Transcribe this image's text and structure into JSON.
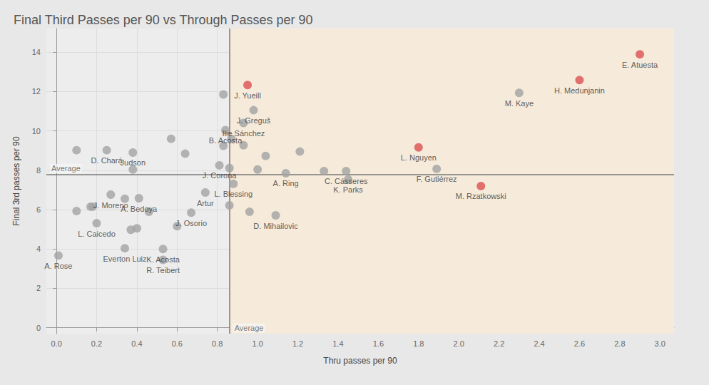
{
  "chart_data": {
    "type": "scatter",
    "title": "Final Third Passes per 90 vs Through Passes per 90",
    "x_label": "Thru passes per 90",
    "y_label": "Final 3rd passes per 90",
    "x": [
      0.01,
      0.1,
      0.17,
      0.18,
      0.2,
      0.1,
      0.25,
      0.38,
      0.38,
      0.27,
      0.34,
      0.34,
      0.41,
      0.37,
      0.4,
      0.46,
      0.53,
      0.53,
      0.57,
      0.6,
      0.67,
      0.64,
      0.81,
      0.74,
      0.83,
      0.84,
      0.83,
      0.87,
      0.86,
      0.86,
      0.88,
      0.95,
      0.98,
      0.93,
      0.93,
      0.96,
      1.09,
      1.0,
      1.04,
      1.14,
      1.21,
      1.33,
      1.44,
      1.45,
      1.8,
      1.89,
      2.11,
      2.3,
      2.6,
      2.9
    ],
    "values": [
      3.67,
      5.93,
      6.15,
      6.15,
      5.31,
      9.02,
      9.02,
      8.9,
      8.04,
      6.76,
      4.04,
      6.55,
      6.58,
      4.98,
      5.05,
      5.89,
      4.0,
      3.45,
      9.6,
      5.16,
      5.85,
      8.84,
      8.25,
      6.87,
      11.85,
      10.04,
      9.24,
      9.6,
      8.11,
      6.22,
      7.31,
      12.33,
      11.05,
      10.4,
      9.27,
      5.89,
      5.71,
      8.04,
      8.73,
      7.85,
      8.95,
      7.96,
      7.96,
      7.53,
      9.16,
      8.07,
      7.2,
      11.93,
      12.58,
      13.89
    ],
    "point_labels": [
      "A. Rose",
      null,
      null,
      null,
      "L. Caicedo",
      null,
      "D. Chará",
      "Judson",
      null,
      "J. Moreno",
      "Everton Luiz",
      null,
      "A. Bedoya",
      null,
      null,
      null,
      "K. Acosta",
      "R. Teibert",
      null,
      null,
      "J. Osorio",
      null,
      "J. Corona",
      "Artur",
      null,
      "B. Acosta",
      null,
      null,
      null,
      null,
      "L. Blessing",
      "J. Yueill",
      "J. Greguš",
      "Ilie Sánchez",
      null,
      null,
      "D. Mihailovic",
      null,
      null,
      "A. Ring",
      null,
      null,
      "C. Cásseres",
      "K. Parks",
      "L. Nguyen",
      "F. Gutiérrez",
      "M. Rzatkowski",
      "M. Kaye",
      "H. Medunjanin",
      "E. Atuesta"
    ],
    "colors": [
      "#a3a3a3",
      "#a3a3a3",
      "#a3a3a3",
      "#a3a3a3",
      "#a3a3a3",
      "#a3a3a3",
      "#a3a3a3",
      "#a3a3a3",
      "#a3a3a3",
      "#a3a3a3",
      "#a3a3a3",
      "#a3a3a3",
      "#a3a3a3",
      "#a3a3a3",
      "#a3a3a3",
      "#a3a3a3",
      "#a3a3a3",
      "#a3a3a3",
      "#a3a3a3",
      "#a3a3a3",
      "#a3a3a3",
      "#a3a3a3",
      "#a3a3a3",
      "#a3a3a3",
      "#a3a3a3",
      "#a3a3a3",
      "#a3a3a3",
      "#a3a3a3",
      "#a3a3a3",
      "#a3a3a3",
      "#a3a3a3",
      "#dc5050",
      "#a3a3a3",
      "#a3a3a3",
      "#a3a3a3",
      "#a3a3a3",
      "#a3a3a3",
      "#a3a3a3",
      "#a3a3a3",
      "#a3a3a3",
      "#a3a3a3",
      "#a3a3a3",
      "#a3a3a3",
      "#a3a3a3",
      "#dc5050",
      "#a3a3a3",
      "#dc5050",
      "#a3a3a3",
      "#dc5050",
      "#dc5050"
    ],
    "xlim": [
      -0.05,
      3.07
    ],
    "ylim": [
      -0.3,
      15.2
    ],
    "xticks": [
      {
        "value": 0,
        "label": "0.0"
      },
      {
        "value": 0.2,
        "label": "0.2"
      },
      {
        "value": 0.4,
        "label": "0.4"
      },
      {
        "value": 0.6,
        "label": "0.6"
      },
      {
        "value": 0.8,
        "label": "0.8"
      },
      {
        "value": 1.0,
        "label": "1.0"
      },
      {
        "value": 1.2,
        "label": "1.2"
      },
      {
        "value": 1.4,
        "label": "1.4"
      },
      {
        "value": 1.6,
        "label": "1.6"
      },
      {
        "value": 1.8,
        "label": "1.8"
      },
      {
        "value": 2.0,
        "label": "2.0"
      },
      {
        "value": 2.2,
        "label": "2.2"
      },
      {
        "value": 2.4,
        "label": "2.4"
      },
      {
        "value": 2.6,
        "label": "2.6"
      },
      {
        "value": 2.8,
        "label": "2.8"
      },
      {
        "value": 3.0,
        "label": "3.0"
      }
    ],
    "yticks": [
      0,
      2,
      4,
      6,
      8,
      10,
      12,
      14
    ],
    "grid": true,
    "reference_lines": [
      {
        "axis": "x",
        "value": 0.86,
        "label": "Average"
      },
      {
        "axis": "y",
        "value": 7.8,
        "label": "Average"
      }
    ]
  }
}
